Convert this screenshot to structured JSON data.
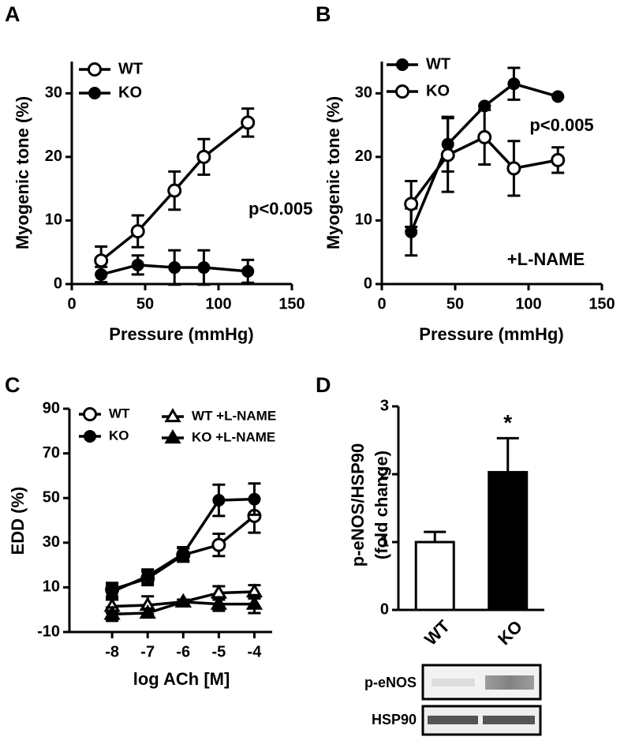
{
  "chart_data": [
    {
      "type": "line",
      "panel_label": "A",
      "x_label": "Pressure (mmHg)",
      "y_label": "Myogenic tone (%)",
      "x": [
        20,
        45,
        70,
        90,
        120
      ],
      "xlim": [
        0,
        150
      ],
      "xticks": [
        0,
        50,
        100,
        150
      ],
      "ylim": [
        0,
        35
      ],
      "yticks": [
        0,
        10,
        20,
        30
      ],
      "legend": "upper left",
      "annotations": [
        "p<0.005"
      ],
      "series": [
        {
          "name": "WT",
          "color": "#000000",
          "marker": "open-circle",
          "values": [
            3.7,
            8.3,
            14.7,
            20,
            25.4
          ],
          "errors": [
            2.2,
            2.5,
            3,
            2.8,
            2.2
          ]
        },
        {
          "name": "KO",
          "color": "#000000",
          "marker": "filled-circle",
          "values": [
            1.5,
            3,
            2.6,
            2.6,
            2
          ],
          "errors": [
            1.2,
            1.5,
            2.7,
            2.7,
            1.8
          ]
        }
      ]
    },
    {
      "type": "line",
      "panel_label": "B",
      "x_label": "Pressure (mmHg)",
      "y_label": "Myogenic tone (%)",
      "x": [
        20,
        45,
        70,
        90,
        120
      ],
      "xlim": [
        0,
        150
      ],
      "xticks": [
        0,
        50,
        100,
        150
      ],
      "ylim": [
        0,
        35
      ],
      "yticks": [
        0,
        10,
        20,
        30
      ],
      "legend": "upper left",
      "annotations": [
        "p<0.005",
        "+L-NAME"
      ],
      "series": [
        {
          "name": "WT",
          "color": "#000000",
          "marker": "filled-circle",
          "values": [
            8.2,
            22,
            28,
            31.5,
            29.5
          ],
          "errors": [
            3.7,
            4.3,
            0,
            2.5,
            0
          ]
        },
        {
          "name": "KO",
          "color": "#000000",
          "marker": "open-circle",
          "values": [
            12.6,
            20.3,
            23.1,
            18.2,
            19.5
          ],
          "errors": [
            3.6,
            5.8,
            4.3,
            4.3,
            2
          ]
        }
      ]
    },
    {
      "type": "line",
      "panel_label": "C",
      "x_label": "log ACh [M]",
      "y_label": "EDD (%)",
      "x": [
        -8,
        -7,
        -6,
        -5,
        -4
      ],
      "xlim": [
        -9.2,
        -3.5
      ],
      "xticks": [
        -8,
        -7,
        -6,
        -5,
        -4
      ],
      "ylim": [
        -10,
        90
      ],
      "yticks": [
        -10,
        10,
        30,
        50,
        70,
        90
      ],
      "legend": "upper left",
      "annotations": [],
      "series": [
        {
          "name": "WT",
          "color": "#000000",
          "marker": "open-circle",
          "values": [
            9,
            14,
            24.5,
            29,
            42
          ],
          "errors": [
            3,
            3,
            3,
            5,
            7.5
          ]
        },
        {
          "name": "KO",
          "color": "#000000",
          "marker": "filled-circle",
          "values": [
            8,
            15,
            25,
            49,
            49.5
          ],
          "errors": [
            3,
            3,
            3,
            7,
            7
          ]
        },
        {
          "name": "WT +L-NAME",
          "color": "#000000",
          "marker": "open-triangle",
          "values": [
            1.5,
            2,
            3.5,
            7.5,
            8
          ],
          "errors": [
            3,
            4,
            1,
            3,
            3
          ]
        },
        {
          "name": "KO +L-NAME",
          "color": "#000000",
          "marker": "filled-triangle",
          "values": [
            -2,
            -1.5,
            3.5,
            2.5,
            2.5
          ],
          "errors": [
            3,
            2,
            1,
            3,
            4
          ]
        }
      ]
    },
    {
      "type": "bar",
      "panel_label": "D",
      "y_label": [
        "p-eNOS/HSP90",
        "(fold change)"
      ],
      "categories": [
        "WT",
        "KO"
      ],
      "values": [
        1,
        2.03
      ],
      "errors": [
        0.15,
        0.5
      ],
      "colors": [
        "#ffffff",
        "#000000"
      ],
      "ylim": [
        0,
        3
      ],
      "yticks": [
        0,
        1,
        2,
        3
      ],
      "annotations": [
        "*"
      ],
      "blot_labels": [
        "p-eNOS",
        "HSP90"
      ]
    }
  ]
}
